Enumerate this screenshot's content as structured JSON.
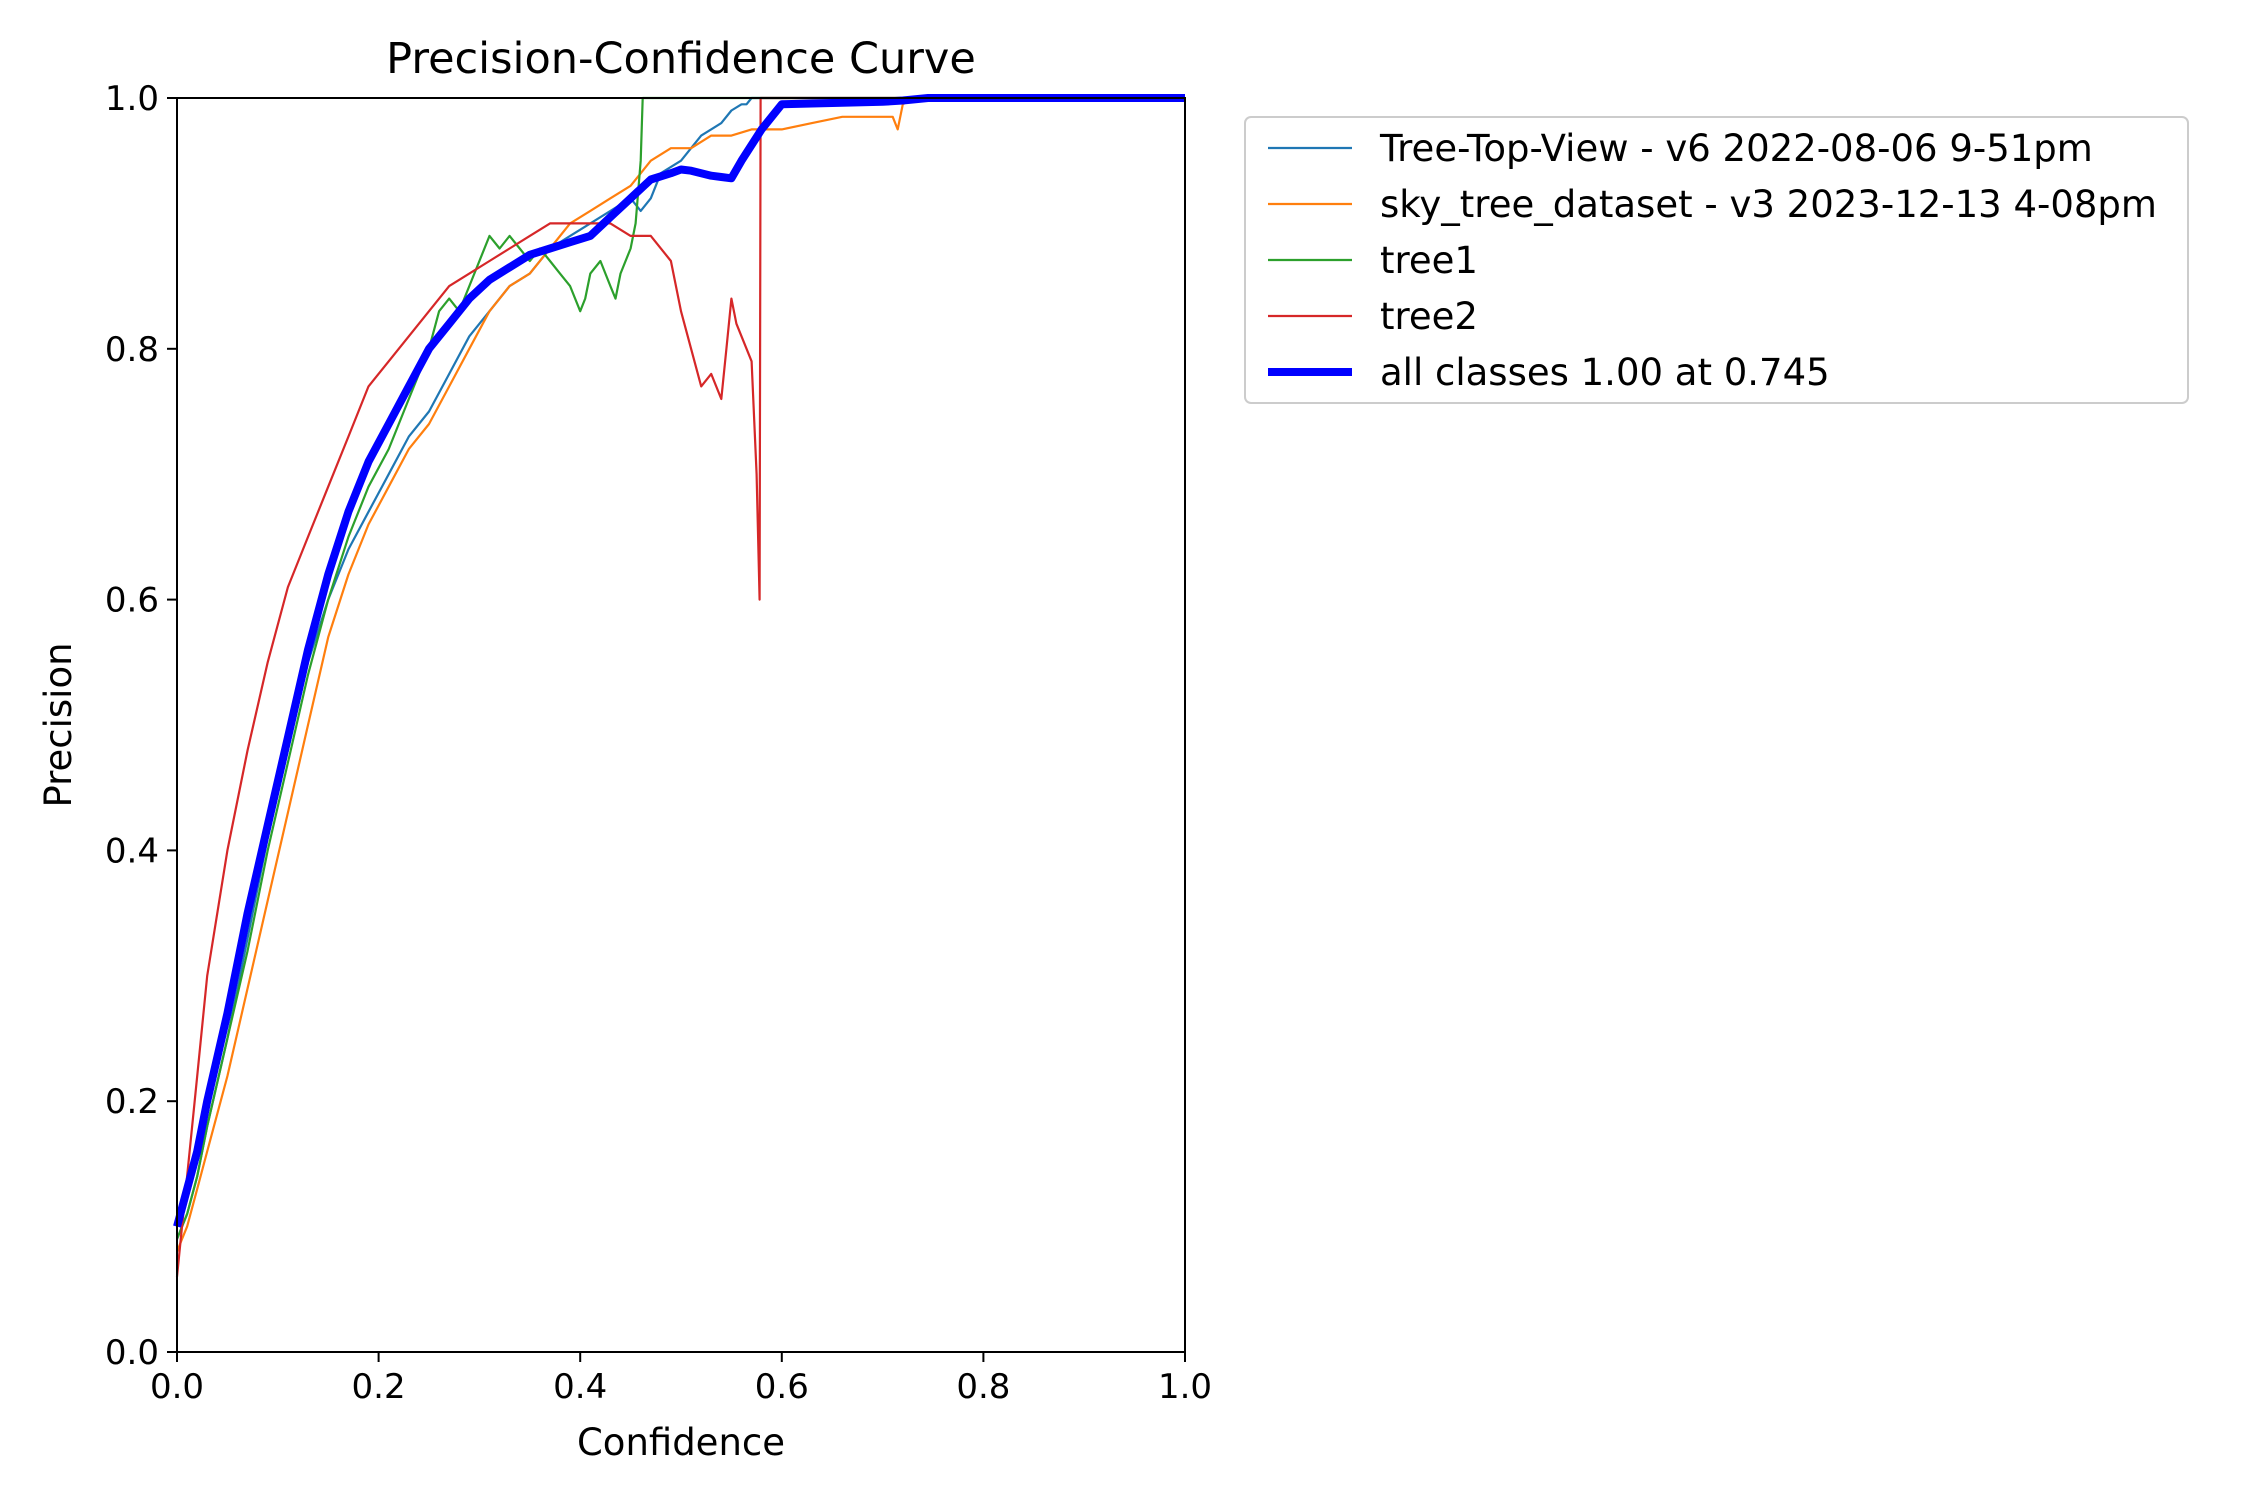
{
  "chart_data": {
    "type": "line",
    "title": "Precision-Confidence Curve",
    "xlabel": "Confidence",
    "ylabel": "Precision",
    "xlim": [
      0,
      1
    ],
    "ylim": [
      0,
      1
    ],
    "xticks": [
      "0.0",
      "0.2",
      "0.4",
      "0.6",
      "0.8",
      "1.0"
    ],
    "yticks": [
      "0.0",
      "0.2",
      "0.4",
      "0.6",
      "0.8",
      "1.0"
    ],
    "grid": false,
    "legend_position": "outside-top-right",
    "series": [
      {
        "name": "Tree-Top-View - v6 2022-08-06 9-51pm",
        "color": "#1f77b4",
        "x": [
          0.0,
          0.005,
          0.01,
          0.02,
          0.03,
          0.05,
          0.07,
          0.09,
          0.11,
          0.13,
          0.15,
          0.17,
          0.19,
          0.21,
          0.23,
          0.25,
          0.27,
          0.29,
          0.31,
          0.33,
          0.35,
          0.37,
          0.39,
          0.41,
          0.43,
          0.45,
          0.46,
          0.47,
          0.48,
          0.5,
          0.52,
          0.54,
          0.55,
          0.56,
          0.565,
          0.57,
          0.6,
          0.7,
          0.8,
          0.9,
          1.0
        ],
        "y": [
          0.09,
          0.1,
          0.11,
          0.14,
          0.18,
          0.25,
          0.33,
          0.41,
          0.48,
          0.55,
          0.6,
          0.64,
          0.67,
          0.7,
          0.73,
          0.75,
          0.78,
          0.81,
          0.83,
          0.85,
          0.86,
          0.88,
          0.89,
          0.9,
          0.91,
          0.92,
          0.91,
          0.92,
          0.94,
          0.95,
          0.97,
          0.98,
          0.99,
          0.995,
          0.995,
          1.0,
          1.0,
          1.0,
          1.0,
          1.0,
          1.0
        ]
      },
      {
        "name": "sky_tree_dataset - v3 2023-12-13 4-08pm",
        "color": "#ff7f0e",
        "x": [
          0.0,
          0.005,
          0.01,
          0.02,
          0.03,
          0.05,
          0.07,
          0.09,
          0.11,
          0.13,
          0.15,
          0.17,
          0.19,
          0.21,
          0.23,
          0.25,
          0.27,
          0.29,
          0.31,
          0.33,
          0.35,
          0.37,
          0.39,
          0.41,
          0.43,
          0.45,
          0.47,
          0.49,
          0.51,
          0.53,
          0.55,
          0.57,
          0.6,
          0.63,
          0.66,
          0.69,
          0.71,
          0.715,
          0.72,
          0.73,
          0.75,
          0.8,
          0.9,
          1.0
        ],
        "y": [
          0.08,
          0.09,
          0.1,
          0.13,
          0.16,
          0.22,
          0.29,
          0.36,
          0.43,
          0.5,
          0.57,
          0.62,
          0.66,
          0.69,
          0.72,
          0.74,
          0.77,
          0.8,
          0.83,
          0.85,
          0.86,
          0.88,
          0.9,
          0.91,
          0.92,
          0.93,
          0.95,
          0.96,
          0.96,
          0.97,
          0.97,
          0.975,
          0.975,
          0.98,
          0.985,
          0.985,
          0.985,
          0.975,
          0.995,
          1.0,
          1.0,
          1.0,
          1.0,
          1.0
        ]
      },
      {
        "name": "tree1",
        "color": "#2ca02c",
        "x": [
          0.0,
          0.005,
          0.01,
          0.02,
          0.03,
          0.05,
          0.07,
          0.09,
          0.11,
          0.13,
          0.15,
          0.17,
          0.19,
          0.21,
          0.23,
          0.25,
          0.26,
          0.27,
          0.28,
          0.29,
          0.3,
          0.31,
          0.32,
          0.33,
          0.34,
          0.35,
          0.36,
          0.37,
          0.38,
          0.39,
          0.4,
          0.405,
          0.41,
          0.42,
          0.43,
          0.435,
          0.44,
          0.45,
          0.455,
          0.46,
          0.462,
          0.47,
          0.5,
          0.6,
          0.7,
          0.8,
          0.9,
          1.0
        ],
        "y": [
          0.09,
          0.1,
          0.11,
          0.14,
          0.18,
          0.25,
          0.32,
          0.4,
          0.47,
          0.54,
          0.6,
          0.65,
          0.69,
          0.72,
          0.76,
          0.8,
          0.83,
          0.84,
          0.83,
          0.85,
          0.87,
          0.89,
          0.88,
          0.89,
          0.88,
          0.87,
          0.88,
          0.87,
          0.86,
          0.85,
          0.83,
          0.84,
          0.86,
          0.87,
          0.85,
          0.84,
          0.86,
          0.88,
          0.9,
          0.95,
          1.0,
          1.0,
          1.0,
          1.0,
          1.0,
          1.0,
          1.0,
          1.0
        ]
      },
      {
        "name": "tree2",
        "color": "#d62728",
        "x": [
          0.0,
          0.005,
          0.01,
          0.02,
          0.03,
          0.05,
          0.07,
          0.09,
          0.11,
          0.13,
          0.15,
          0.17,
          0.19,
          0.21,
          0.23,
          0.25,
          0.27,
          0.29,
          0.31,
          0.33,
          0.35,
          0.37,
          0.39,
          0.41,
          0.43,
          0.45,
          0.47,
          0.49,
          0.5,
          0.51,
          0.52,
          0.53,
          0.54,
          0.545,
          0.55,
          0.555,
          0.56,
          0.57,
          0.575,
          0.578,
          0.579,
          0.58,
          0.6,
          0.8,
          1.0
        ],
        "y": [
          0.06,
          0.1,
          0.14,
          0.22,
          0.3,
          0.4,
          0.48,
          0.55,
          0.61,
          0.65,
          0.69,
          0.73,
          0.77,
          0.79,
          0.81,
          0.83,
          0.85,
          0.86,
          0.87,
          0.88,
          0.89,
          0.9,
          0.9,
          0.9,
          0.9,
          0.89,
          0.89,
          0.87,
          0.83,
          0.8,
          0.77,
          0.78,
          0.76,
          0.8,
          0.84,
          0.82,
          0.81,
          0.79,
          0.7,
          0.6,
          1.0,
          1.0,
          1.0,
          1.0,
          1.0
        ]
      },
      {
        "name": "all classes 1.00 at 0.745",
        "color": "#0000ff",
        "emphasis": true,
        "x": [
          0.0,
          0.01,
          0.02,
          0.03,
          0.05,
          0.07,
          0.09,
          0.11,
          0.13,
          0.15,
          0.17,
          0.19,
          0.21,
          0.23,
          0.25,
          0.27,
          0.29,
          0.31,
          0.33,
          0.35,
          0.37,
          0.39,
          0.41,
          0.43,
          0.45,
          0.47,
          0.49,
          0.5,
          0.51,
          0.52,
          0.53,
          0.54,
          0.55,
          0.56,
          0.58,
          0.6,
          0.65,
          0.7,
          0.72,
          0.745,
          0.8,
          0.9,
          1.0
        ],
        "y": [
          0.1,
          0.13,
          0.16,
          0.2,
          0.27,
          0.35,
          0.42,
          0.49,
          0.56,
          0.62,
          0.67,
          0.71,
          0.74,
          0.77,
          0.8,
          0.82,
          0.84,
          0.855,
          0.865,
          0.875,
          0.88,
          0.885,
          0.89,
          0.905,
          0.92,
          0.935,
          0.94,
          0.943,
          0.942,
          0.94,
          0.938,
          0.937,
          0.936,
          0.95,
          0.975,
          0.995,
          0.996,
          0.997,
          0.998,
          1.0,
          1.0,
          1.0,
          1.0
        ]
      }
    ]
  }
}
